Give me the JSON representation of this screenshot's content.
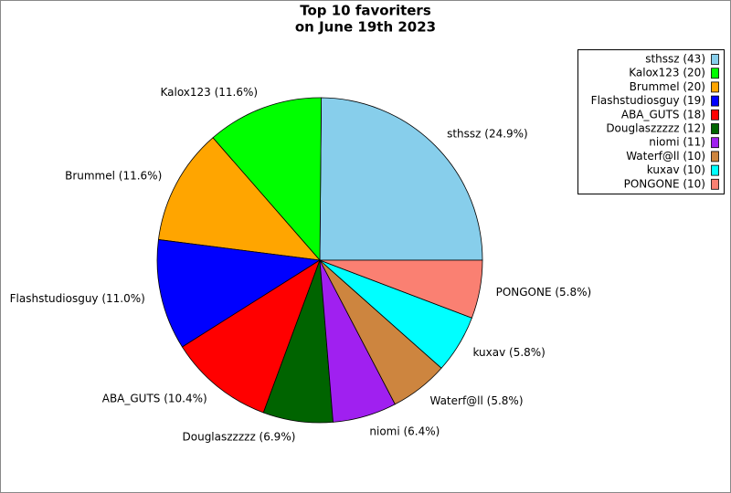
{
  "chart_data": {
    "type": "pie",
    "title": [
      "Top 10 favoriters",
      "on June 19th 2023"
    ],
    "values": [
      43,
      20,
      20,
      19,
      18,
      12,
      11,
      10,
      10,
      10
    ],
    "value_labels": [
      "sthssz (24.9%)",
      "Kalox123 (11.6%)",
      "Brummel (11.6%)",
      "Flashstudiosguy (11.0%)",
      "ABA_GUTS (10.4%)",
      "Douglaszzzzz (6.9%)",
      "niomi (6.4%)",
      "Waterf@ll (5.8%)",
      "kuxav (5.8%)",
      "PONGONE (5.8%)"
    ],
    "legend_labels": [
      "sthssz (43)",
      "Kalox123 (20)",
      "Brummel (20)",
      "Flashstudiosguy (19)",
      "ABA_GUTS (18)",
      "Douglaszzzzz (12)",
      "niomi (11)",
      "Waterf@ll (10)",
      "kuxav (10)",
      "PONGONE (10)"
    ],
    "colors": [
      "#87ceeb",
      "#00ff00",
      "#ffa500",
      "#0000ff",
      "#ff0000",
      "#006400",
      "#a020f0",
      "#cd853f",
      "#00ffff",
      "#fa8072"
    ],
    "legend_position": "upper right"
  }
}
